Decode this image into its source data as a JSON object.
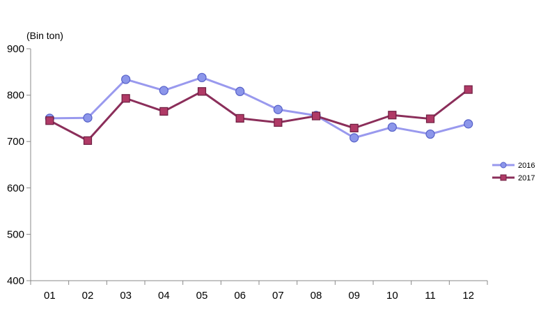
{
  "chart_data": {
    "type": "line",
    "ylabel": "(Bin ton)",
    "categories": [
      "01",
      "02",
      "03",
      "04",
      "05",
      "06",
      "07",
      "08",
      "09",
      "10",
      "11",
      "12"
    ],
    "ylim": [
      400,
      900
    ],
    "yticks": [
      400,
      500,
      600,
      700,
      800,
      900
    ],
    "grid": false,
    "legend_position": "right",
    "series": [
      {
        "name": "2016",
        "marker": "circle",
        "color": "#9999ee",
        "marker_fill": "#8c96ea",
        "values": [
          750,
          751,
          834,
          810,
          838,
          808,
          769,
          756,
          708,
          731,
          716,
          738
        ]
      },
      {
        "name": "2017",
        "marker": "square",
        "color": "#8b2e5a",
        "marker_fill": "#b03a66",
        "values": [
          745,
          702,
          793,
          765,
          808,
          750,
          741,
          755,
          729,
          757,
          749,
          812
        ]
      }
    ]
  }
}
